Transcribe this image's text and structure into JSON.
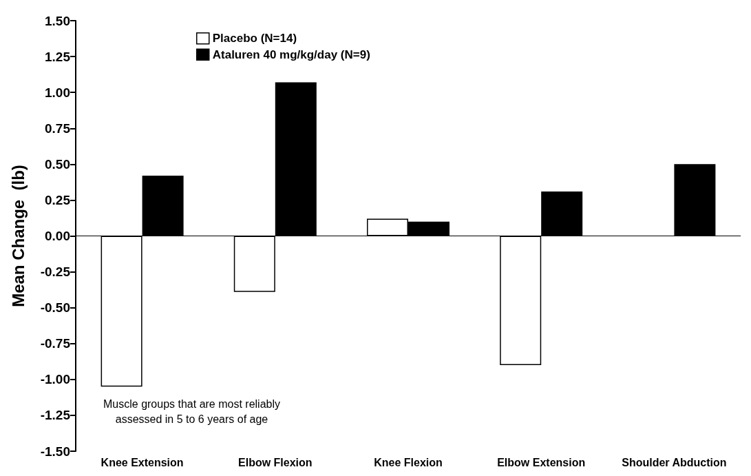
{
  "chart_data": {
    "type": "bar",
    "ylabel": "Mean Change  (lb)",
    "categories": [
      "Knee Extension",
      "Elbow Flexion",
      "Knee Flexion",
      "Elbow Extension",
      "Shoulder Abduction"
    ],
    "series": [
      {
        "name": "Placebo (N=14)",
        "color": "#ffffff",
        "values": [
          -1.05,
          -0.39,
          0.12,
          -0.9,
          null
        ]
      },
      {
        "name": "Ataluren 40 mg/kg/day (N=9)",
        "color": "#000000",
        "values": [
          0.42,
          1.07,
          0.1,
          0.31,
          0.5
        ]
      }
    ],
    "ylim": [
      -1.5,
      1.5
    ],
    "yticks": [
      {
        "value": 1.5,
        "label": "1.50"
      },
      {
        "value": 1.25,
        "label": "1.25"
      },
      {
        "value": 1,
        "label": "1.00"
      },
      {
        "value": 0.75,
        "label": "0.75"
      },
      {
        "value": 0.5,
        "label": "0.50"
      },
      {
        "value": 0.25,
        "label": "0.25"
      },
      {
        "value": 0,
        "label": "0.00"
      },
      {
        "value": -0.25,
        "label": "-0.25"
      },
      {
        "value": -0.5,
        "label": "-0.50"
      },
      {
        "value": -0.75,
        "label": "-0.75"
      },
      {
        "value": -1,
        "label": "-1.00"
      },
      {
        "value": -1.25,
        "label": "-1.25"
      },
      {
        "value": -1.5,
        "label": "-1.50"
      }
    ],
    "ref_lines": [
      {
        "axis": "y",
        "value": 0
      }
    ],
    "annotations": [
      "Muscle groups that are most reliably\nassessed in 5 to 6 years of age"
    ],
    "legend": "top left",
    "grid": false
  }
}
